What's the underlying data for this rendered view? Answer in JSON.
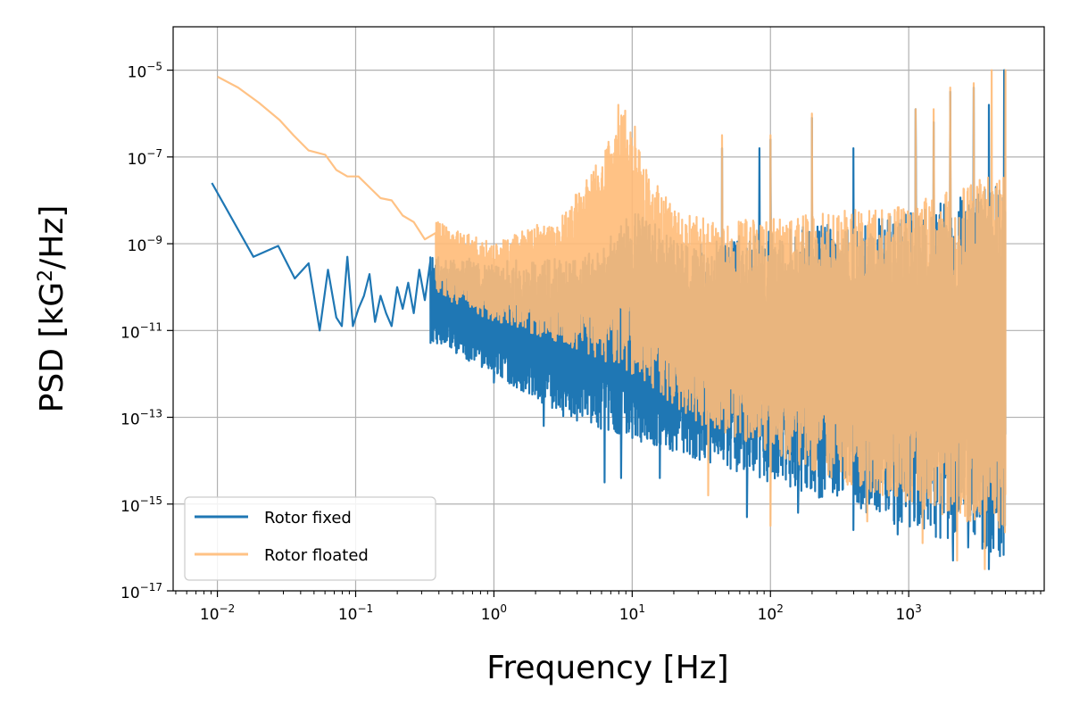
{
  "chart_data": {
    "type": "line",
    "title": "",
    "xlabel": "Frequency [Hz]",
    "ylabel_parts": {
      "prefix": "PSD [kG",
      "sup": "2",
      "suffix": "/Hz]"
    },
    "xscale": "log",
    "yscale": "log",
    "xlim_log10": [
      -2.32,
      3.98
    ],
    "ylim_log10": [
      -17,
      -4
    ],
    "grid": true,
    "legend_position": "lower-left",
    "x_ticks": [
      {
        "base": "10",
        "exp": "−2",
        "log10": -2
      },
      {
        "base": "10",
        "exp": "−1",
        "log10": -1
      },
      {
        "base": "10",
        "exp": "0",
        "log10": 0
      },
      {
        "base": "10",
        "exp": "1",
        "log10": 1
      },
      {
        "base": "10",
        "exp": "2",
        "log10": 2
      },
      {
        "base": "10",
        "exp": "3",
        "log10": 3
      }
    ],
    "y_ticks": [
      {
        "base": "10",
        "exp": "−5",
        "log10": -5
      },
      {
        "base": "10",
        "exp": "−7",
        "log10": -7
      },
      {
        "base": "10",
        "exp": "−9",
        "log10": -9
      },
      {
        "base": "10",
        "exp": "−11",
        "log10": -11
      },
      {
        "base": "10",
        "exp": "−13",
        "log10": -13
      },
      {
        "base": "10",
        "exp": "−15",
        "log10": -15
      },
      {
        "base": "10",
        "exp": "−17",
        "log10": -17
      }
    ],
    "series": [
      {
        "name": "Rotor fixed",
        "color": "#1f77b4",
        "opacity": 1.0,
        "f_start": 0.0092,
        "f_end": 5000,
        "points_log10": [
          [
            -2.04,
            -7.6
          ],
          [
            -1.74,
            -9.3
          ],
          [
            -1.56,
            -9.05
          ],
          [
            -1.44,
            -9.8
          ],
          [
            -1.34,
            -9.45
          ],
          [
            -1.26,
            -11.0
          ],
          [
            -1.2,
            -9.6
          ],
          [
            -1.14,
            -10.7
          ],
          [
            -1.1,
            -10.9
          ],
          [
            -1.06,
            -9.3
          ],
          [
            -1.02,
            -10.9
          ],
          [
            -0.98,
            -10.5
          ],
          [
            -0.94,
            -10.2
          ],
          [
            -0.9,
            -9.7
          ],
          [
            -0.86,
            -10.8
          ],
          [
            -0.82,
            -10.2
          ],
          [
            -0.78,
            -10.6
          ],
          [
            -0.74,
            -10.9
          ],
          [
            -0.7,
            -10.0
          ],
          [
            -0.66,
            -10.5
          ],
          [
            -0.62,
            -9.9
          ],
          [
            -0.58,
            -10.6
          ],
          [
            -0.54,
            -9.6
          ],
          [
            -0.5,
            -10.3
          ],
          [
            -0.46,
            -9.4
          ]
        ],
        "band": {
          "upper_anchors": [
            [
              -0.4,
              -9.3
            ],
            [
              0.3,
              -9.4
            ],
            [
              0.75,
              -9.2
            ],
            [
              1.0,
              -8.2
            ],
            [
              1.4,
              -9.0
            ],
            [
              2.0,
              -8.7
            ],
            [
              3.0,
              -8.3
            ],
            [
              3.7,
              -7.6
            ]
          ],
          "lower_anchors": [
            [
              -0.4,
              -11.3
            ],
            [
              0.0,
              -12.0
            ],
            [
              0.5,
              -13.0
            ],
            [
              1.0,
              -13.5
            ],
            [
              1.5,
              -14.0
            ],
            [
              2.0,
              -14.5
            ],
            [
              2.5,
              -15.0
            ],
            [
              3.0,
              -15.6
            ],
            [
              3.7,
              -16.2
            ]
          ],
          "spikes_up": [
            [
              3.69,
              -5.0
            ],
            [
              3.47,
              -5.4
            ],
            [
              3.3,
              -5.5
            ],
            [
              3.05,
              -5.9
            ],
            [
              2.3,
              -6.1
            ],
            [
              2.0,
              -6.6
            ],
            [
              1.92,
              -6.8
            ],
            [
              1.65,
              -6.8
            ],
            [
              2.6,
              -6.8
            ],
            [
              3.18,
              -6.2
            ],
            [
              3.58,
              -5.8
            ]
          ],
          "spikes_down": [
            [
              3.66,
              -16.2
            ],
            [
              3.58,
              -16.5
            ],
            [
              3.43,
              -16.0
            ],
            [
              3.32,
              -16.3
            ],
            [
              2.92,
              -15.7
            ],
            [
              2.6,
              -15.6
            ],
            [
              2.2,
              -15.2
            ],
            [
              1.83,
              -15.3
            ],
            [
              1.2,
              -14.4
            ],
            [
              0.92,
              -14.4
            ],
            [
              0.8,
              -14.5
            ],
            [
              0.36,
              -13.2
            ],
            [
              0.0,
              -12.2
            ],
            [
              -0.18,
              -11.7
            ],
            [
              -0.38,
              -11.3
            ]
          ]
        }
      },
      {
        "name": "Rotor floated",
        "color": "#ffbb78",
        "opacity": 0.9,
        "f_start": 0.01,
        "f_end": 5000,
        "points_log10": [
          [
            -2.0,
            -5.15
          ],
          [
            -1.85,
            -5.4
          ],
          [
            -1.7,
            -5.75
          ],
          [
            -1.55,
            -6.15
          ],
          [
            -1.45,
            -6.5
          ],
          [
            -1.34,
            -6.85
          ],
          [
            -1.22,
            -6.95
          ],
          [
            -1.14,
            -7.3
          ],
          [
            -1.06,
            -7.45
          ],
          [
            -0.98,
            -7.45
          ],
          [
            -0.9,
            -7.7
          ],
          [
            -0.82,
            -7.95
          ],
          [
            -0.74,
            -8.0
          ],
          [
            -0.66,
            -8.35
          ],
          [
            -0.58,
            -8.5
          ],
          [
            -0.5,
            -8.9
          ],
          [
            -0.42,
            -8.75
          ]
        ],
        "band": {
          "upper_anchors": [
            [
              -0.4,
              -8.5
            ],
            [
              0.0,
              -9.0
            ],
            [
              0.5,
              -8.3
            ],
            [
              0.8,
              -6.8
            ],
            [
              0.95,
              -5.8
            ],
            [
              1.1,
              -7.2
            ],
            [
              1.3,
              -8.2
            ],
            [
              1.6,
              -8.5
            ],
            [
              2.0,
              -8.4
            ],
            [
              3.0,
              -8.1
            ],
            [
              3.7,
              -7.3
            ]
          ],
          "lower_anchors": [
            [
              -0.4,
              -10.2
            ],
            [
              0.0,
              -10.8
            ],
            [
              0.5,
              -11.3
            ],
            [
              1.0,
              -12.0
            ],
            [
              1.5,
              -13.2
            ],
            [
              2.0,
              -13.8
            ],
            [
              2.5,
              -14.5
            ],
            [
              3.0,
              -15.0
            ],
            [
              3.7,
              -15.7
            ]
          ],
          "spikes_up": [
            [
              3.7,
              -5.0
            ],
            [
              3.6,
              -5.0
            ],
            [
              3.47,
              -5.3
            ],
            [
              3.3,
              -5.4
            ],
            [
              3.05,
              -5.9
            ],
            [
              3.18,
              -5.9
            ],
            [
              2.3,
              -6.0
            ],
            [
              2.0,
              -6.5
            ],
            [
              1.65,
              -6.5
            ],
            [
              0.9,
              -5.8
            ],
            [
              1.02,
              -6.3
            ]
          ],
          "spikes_down": [
            [
              3.55,
              -16.5
            ],
            [
              3.35,
              -16.3
            ],
            [
              3.1,
              -15.9
            ],
            [
              2.7,
              -15.4
            ],
            [
              2.0,
              -15.5
            ],
            [
              1.55,
              -14.8
            ]
          ]
        }
      }
    ]
  }
}
